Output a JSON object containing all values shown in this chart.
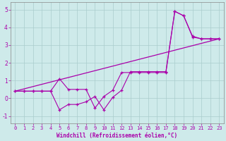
{
  "xlabel": "Windchill (Refroidissement éolien,°C)",
  "background_color": "#ceeaea",
  "grid_color": "#aacccc",
  "line_color": "#aa00aa",
  "xlim": [
    -0.5,
    23.5
  ],
  "ylim": [
    -1.4,
    5.4
  ],
  "xticks": [
    0,
    1,
    2,
    3,
    4,
    5,
    6,
    7,
    8,
    9,
    10,
    11,
    12,
    13,
    14,
    15,
    16,
    17,
    18,
    19,
    20,
    21,
    22,
    23
  ],
  "yticks": [
    -1,
    0,
    1,
    2,
    3,
    4,
    5
  ],
  "trend_x": [
    0,
    23
  ],
  "trend_y": [
    0.4,
    3.35
  ],
  "line_a_x": [
    0,
    1,
    2,
    3,
    4,
    5,
    6,
    7,
    8,
    9,
    10,
    11,
    12,
    13,
    14,
    15,
    16,
    17,
    18,
    19,
    20,
    21,
    22,
    23
  ],
  "line_a_y": [
    0.4,
    0.4,
    0.4,
    0.4,
    0.4,
    1.1,
    0.5,
    0.5,
    0.5,
    -0.55,
    0.1,
    0.45,
    1.45,
    1.45,
    1.45,
    1.45,
    1.45,
    1.45,
    4.9,
    4.65,
    3.45,
    3.35,
    3.35,
    3.35
  ],
  "line_b_x": [
    0,
    1,
    2,
    3,
    4,
    5,
    6,
    7,
    8,
    9,
    10,
    11,
    12,
    13,
    14,
    15,
    16,
    17,
    18,
    19,
    20,
    21,
    22,
    23
  ],
  "line_b_y": [
    0.4,
    0.4,
    0.4,
    0.4,
    0.4,
    -0.65,
    -0.35,
    -0.35,
    -0.2,
    0.1,
    -0.65,
    0.05,
    0.45,
    1.5,
    1.5,
    1.5,
    1.5,
    1.5,
    4.9,
    4.65,
    3.5,
    3.35,
    3.35,
    3.35
  ],
  "tick_fontsize": 5,
  "xlabel_fontsize": 5.5
}
